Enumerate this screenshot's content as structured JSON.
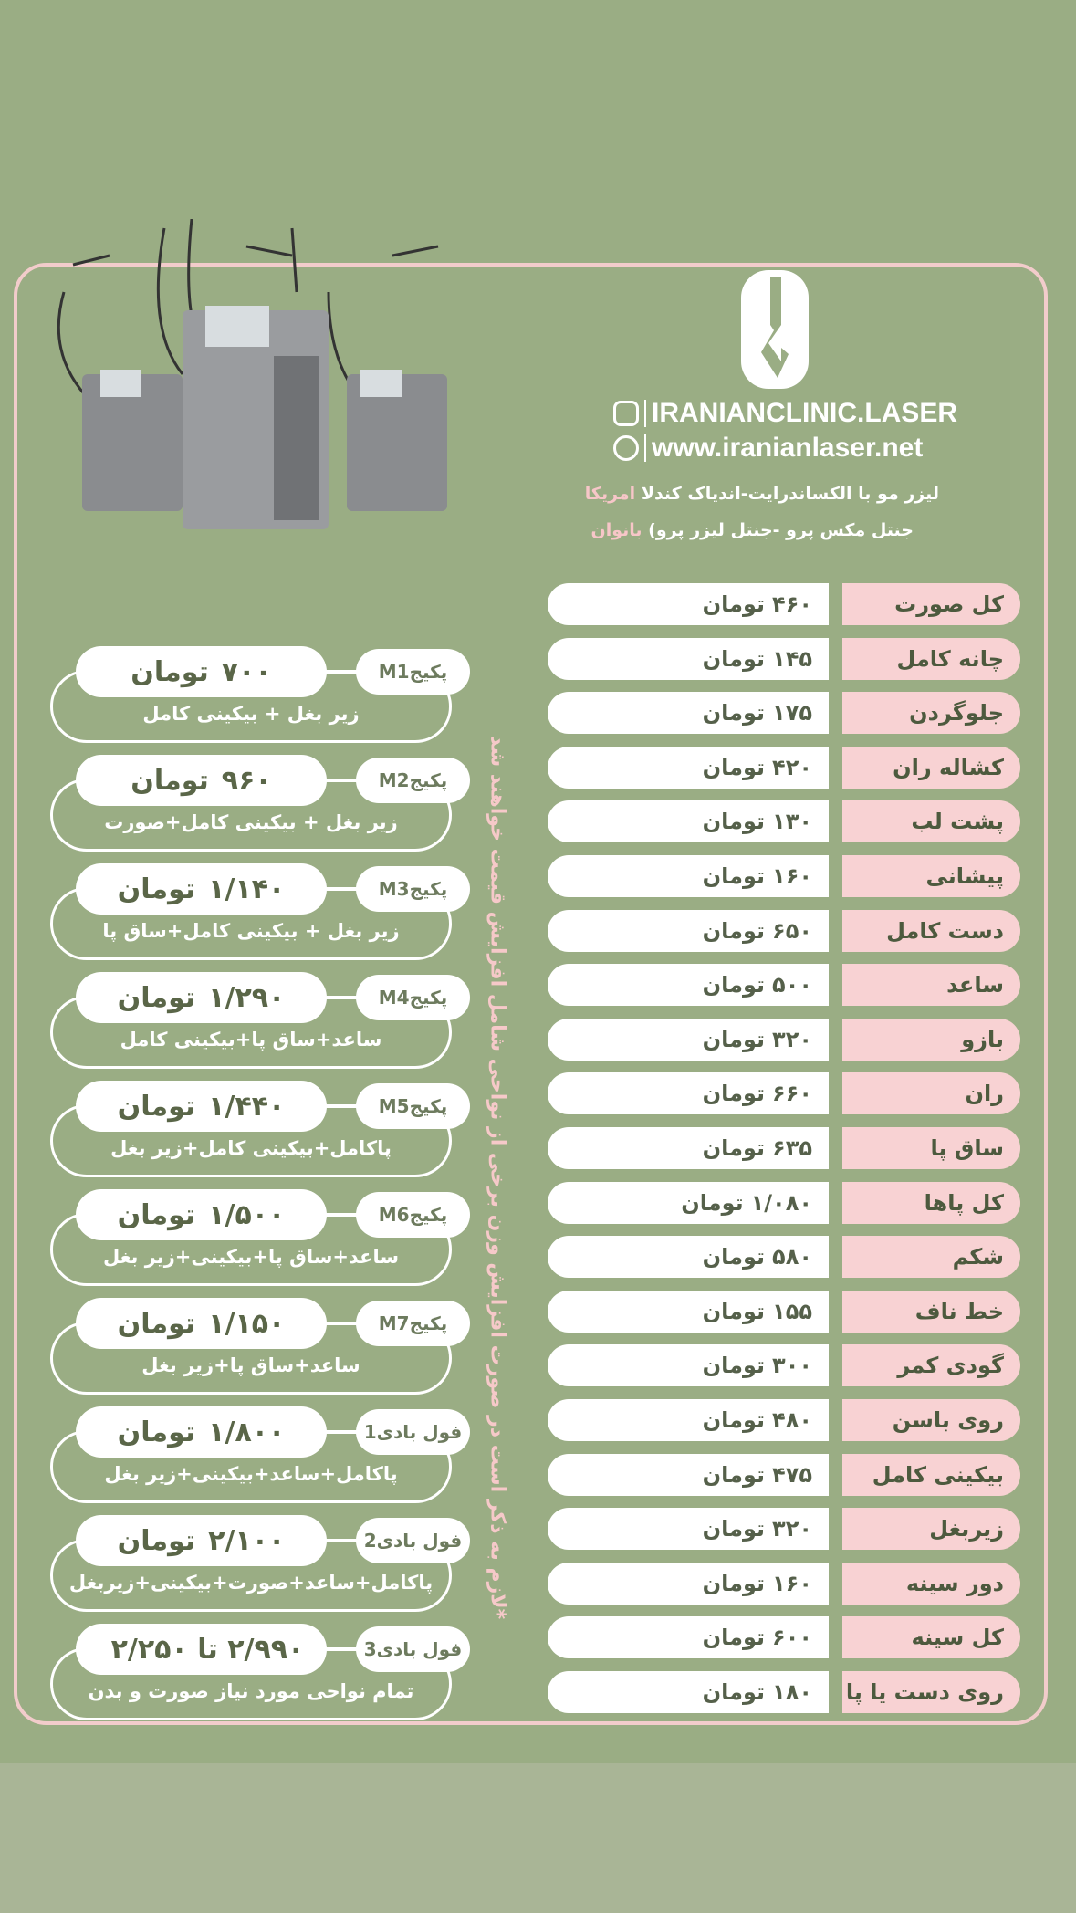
{
  "brand": {
    "instagram": "IRANIANCLINIC.LASER",
    "website": "www.iranianlaser.net"
  },
  "subtitle": {
    "line1": "لیزر مو با الکساندرایت-اندیاک کندلا",
    "line1_accent": "امریکا",
    "line2": "جنتل مکس پرو -جنتل لیزر پرو)",
    "line2_accent": "بانوان"
  },
  "currency": "تومان",
  "prices": [
    {
      "area": "کل صورت",
      "price": "۴۶۰"
    },
    {
      "area": "چانه کامل",
      "price": "۱۴۵"
    },
    {
      "area": "جلوگردن",
      "price": "۱۷۵"
    },
    {
      "area": "کشاله ران",
      "price": "۴۲۰"
    },
    {
      "area": "پشت لب",
      "price": "۱۳۰"
    },
    {
      "area": "پیشانی",
      "price": "۱۶۰"
    },
    {
      "area": "دست کامل",
      "price": "۶۵۰"
    },
    {
      "area": "ساعد",
      "price": "۵۰۰"
    },
    {
      "area": "بازو",
      "price": "۳۲۰"
    },
    {
      "area": "ران",
      "price": "۶۶۰"
    },
    {
      "area": "ساق پا",
      "price": "۶۳۵"
    },
    {
      "area": "کل پاها",
      "price": "۱/۰۸۰"
    },
    {
      "area": "شکم",
      "price": "۵۸۰"
    },
    {
      "area": "خط ناف",
      "price": "۱۵۵"
    },
    {
      "area": "گودی کمر",
      "price": "۳۰۰"
    },
    {
      "area": "روی باسن",
      "price": "۴۸۰"
    },
    {
      "area": "بیکینی کامل",
      "price": "۴۷۵"
    },
    {
      "area": "زیربغل",
      "price": "۳۲۰"
    },
    {
      "area": "دور سینه",
      "price": "۱۶۰"
    },
    {
      "area": "کل سینه",
      "price": "۶۰۰"
    },
    {
      "area": "روی دست یا پا",
      "price": "۱۸۰"
    }
  ],
  "packages": [
    {
      "name": "پکیجM1",
      "price": "۷۰۰",
      "unit": "تومان",
      "desc": "زیر بغل + بیکینی کامل"
    },
    {
      "name": "پکیجM2",
      "price": "۹۶۰",
      "unit": "تومان",
      "desc": "زیر بغل + بیکینی کامل+صورت"
    },
    {
      "name": "پکیجM3",
      "price": "۱/۱۴۰",
      "unit": "تومان",
      "desc": "زیر بغل + بیکینی کامل+ساق پا"
    },
    {
      "name": "پکیجM4",
      "price": "۱/۲۹۰",
      "unit": "تومان",
      "desc": "ساعد+ساق پا+بیکینی کامل"
    },
    {
      "name": "پکیجM5",
      "price": "۱/۴۴۰",
      "unit": "تومان",
      "desc": "پاکامل+بیکینی کامل+زیر بغل"
    },
    {
      "name": "پکیجM6",
      "price": "۱/۵۰۰",
      "unit": "تومان",
      "desc": "ساعد+ساق پا+بیکینی+زیر بغل"
    },
    {
      "name": "پکیجM7",
      "price": "۱/۱۵۰",
      "unit": "تومان",
      "desc": "ساعد+ساق پا+زیر بغل"
    },
    {
      "name": "فول بادی1",
      "price": "۱/۸۰۰",
      "unit": "تومان",
      "desc": "پاکامل+ساعد+بیکینی+زیر بغل"
    },
    {
      "name": "فول بادی2",
      "price": "۲/۱۰۰",
      "unit": "تومان",
      "desc": "پاکامل+ساعد+صورت+بیکینی+زیربغل"
    },
    {
      "name": "فول بادی3",
      "price": "۲/۹۹۰ تا ۲/۲۵۰",
      "unit": "",
      "desc": "تمام نواحی مورد نیاز صورت و بدن"
    }
  ],
  "note": "*لازم به ذکر است در صورت افزایش وزن برخی از نواحی شامل افزایش قیمت خواهند شد",
  "colors": {
    "background": "#9aad84",
    "accent_pink": "#f8d2d3",
    "text_dark": "#4d5a3e"
  }
}
